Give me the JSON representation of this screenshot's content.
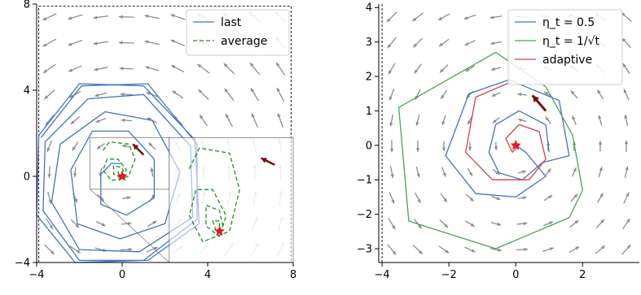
{
  "chart_data": [
    {
      "type": "line",
      "panel": "left",
      "xlim": [
        -4,
        8
      ],
      "ylim": [
        -4,
        8
      ],
      "xticks": [
        "−4",
        "0",
        "4",
        "8"
      ],
      "yticks": [
        "−4",
        "0",
        "4",
        "8"
      ],
      "grid": false,
      "legend_placement": "top-right",
      "legend": [
        "last",
        "average"
      ],
      "equilibrium": {
        "x": 0,
        "y": 0
      },
      "series": [
        {
          "name": "last",
          "color": "#4472c4",
          "style": "solid",
          "points": [
            [
              -3.8,
              1.8
            ],
            [
              -1.9,
              4.2
            ],
            [
              1.2,
              4.3
            ],
            [
              3.5,
              1.5
            ],
            [
              3.5,
              -2.0
            ],
            [
              1.0,
              -3.9
            ],
            [
              -2.2,
              -4.0
            ],
            [
              -4.0,
              -1.8
            ],
            [
              -3.9,
              1.9
            ],
            [
              -2.0,
              4.3
            ],
            [
              1.0,
              4.2
            ],
            [
              3.4,
              1.7
            ],
            [
              3.6,
              -2.2
            ],
            [
              1.2,
              -3.9
            ],
            [
              -2.0,
              -3.9
            ],
            [
              -3.7,
              -1.6
            ],
            [
              -3.6,
              1.6
            ],
            [
              -1.6,
              3.6
            ],
            [
              1.0,
              3.8
            ],
            [
              3.2,
              1.4
            ],
            [
              3.3,
              -1.9
            ],
            [
              0.8,
              -3.5
            ],
            [
              -2.0,
              -3.4
            ],
            [
              -3.3,
              -1.2
            ],
            [
              -2.9,
              1.5
            ],
            [
              -0.8,
              3.0
            ],
            [
              1.4,
              2.6
            ],
            [
              2.7,
              0.2
            ],
            [
              2.0,
              -2.2
            ],
            [
              -0.1,
              -2.9
            ],
            [
              -2.1,
              -2.2
            ],
            [
              -2.4,
              0.3
            ],
            [
              -1.4,
              2.1
            ],
            [
              0.3,
              2.1
            ],
            [
              1.5,
              0.8
            ],
            [
              1.5,
              -1.0
            ],
            [
              0.2,
              -1.8
            ],
            [
              -1.0,
              -1.3
            ],
            [
              -1.0,
              0.1
            ],
            [
              -0.5,
              0.6
            ],
            [
              0.0,
              0.6
            ]
          ]
        },
        {
          "name": "average",
          "color": "#1f8f1f",
          "style": "dashed",
          "points": [
            [
              -0.9,
              1.2
            ],
            [
              -0.6,
              1.6
            ],
            [
              0.3,
              1.5
            ],
            [
              0.6,
              0.8
            ],
            [
              0.3,
              0.0
            ],
            [
              -0.5,
              -0.2
            ],
            [
              -0.9,
              0.3
            ],
            [
              -0.7,
              0.8
            ],
            [
              -0.2,
              0.8
            ],
            [
              0.2,
              0.3
            ],
            [
              0.0,
              -0.1
            ],
            [
              -0.4,
              0.1
            ],
            [
              -0.4,
              0.5
            ],
            [
              0.0,
              0.4
            ],
            [
              0.1,
              0.1
            ],
            [
              -0.1,
              0.0
            ],
            [
              -0.2,
              0.2
            ],
            [
              0.0,
              0.2
            ],
            [
              0.0,
              0.0
            ]
          ]
        }
      ],
      "inset": {
        "source_xlim": [
          -1.5,
          2.2
        ],
        "source_ylim": [
          -0.6,
          1.8
        ],
        "shown_xlim": [
          2.2,
          8.0
        ],
        "shown_ylim": [
          -4.0,
          1.8
        ]
      }
    },
    {
      "type": "line",
      "panel": "right",
      "xlim": [
        -4.1,
        3.7
      ],
      "ylim": [
        -3.4,
        4.1
      ],
      "xticks": [
        "−4",
        "−2",
        "0",
        "2"
      ],
      "yticks": [
        "−3",
        "−2",
        "−1",
        "0",
        "1",
        "2",
        "3",
        "4"
      ],
      "grid": false,
      "legend_placement": "top-right",
      "legend": [
        "η_t = 0.5",
        "η_t = 1/√t",
        "adaptive"
      ],
      "equilibrium": {
        "x": 0,
        "y": 0
      },
      "series": [
        {
          "name": "η_t = 0.5",
          "color": "#4472c4",
          "style": "solid",
          "points": [
            [
              1.0,
              -0.2
            ],
            [
              0.9,
              0.6
            ],
            [
              0.1,
              1.0
            ],
            [
              -0.6,
              0.6
            ],
            [
              -0.8,
              -0.2
            ],
            [
              -0.5,
              -0.8
            ],
            [
              0.2,
              -1.0
            ],
            [
              0.8,
              -0.5
            ],
            [
              1.6,
              -0.3
            ],
            [
              1.3,
              1.3
            ],
            [
              -0.2,
              1.9
            ],
            [
              -1.4,
              1.5
            ],
            [
              -2.1,
              -0.3
            ],
            [
              -1.2,
              -1.4
            ],
            [
              0.0,
              -1.5
            ],
            [
              0.9,
              -0.9
            ],
            [
              0.3,
              -0.2
            ],
            [
              0.0,
              0.0
            ]
          ]
        },
        {
          "name": "η_t = 1/√t",
          "color": "#4ea24e",
          "style": "solid",
          "points": [
            [
              2.0,
              -1.3
            ],
            [
              1.7,
              0.3
            ],
            [
              0.9,
              1.7
            ],
            [
              -0.6,
              2.7
            ],
            [
              -3.5,
              1.1
            ],
            [
              -3.2,
              -2.2
            ],
            [
              -0.6,
              -3.0
            ],
            [
              1.6,
              -2.1
            ],
            [
              2.0,
              -1.3
            ]
          ]
        },
        {
          "name": "adaptive",
          "color": "#cc4444",
          "style": "solid",
          "points": [
            [
              0.0,
              1.9
            ],
            [
              -1.2,
              1.4
            ],
            [
              -1.5,
              -0.2
            ],
            [
              -0.7,
              -1.0
            ],
            [
              0.4,
              -1.0
            ],
            [
              0.9,
              -0.4
            ],
            [
              0.7,
              0.4
            ],
            [
              0.1,
              0.6
            ],
            [
              -0.3,
              0.2
            ],
            [
              -0.1,
              -0.2
            ],
            [
              0.1,
              0.0
            ],
            [
              0.0,
              0.0
            ]
          ]
        }
      ]
    }
  ],
  "colors": {
    "axis": "#000000",
    "quiver": "#8c8c8c",
    "quiver_faint": "#d4d9e6",
    "start_arrow": "#7a0f0f",
    "equilibrium_star": "#e8171e"
  }
}
